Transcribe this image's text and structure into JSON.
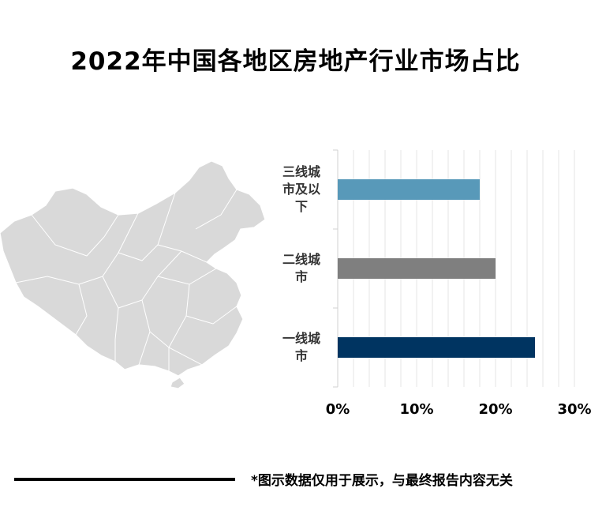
{
  "title": "2022年中国各地区房地产行业市场占比",
  "footnote": "*图示数据仅用于展示，与最终报告内容无关",
  "chart_data": {
    "type": "bar",
    "orientation": "horizontal",
    "categories": [
      "三线城市及以下",
      "二线城市",
      "一线城市"
    ],
    "category_lines": [
      [
        "三线城",
        "市及以",
        "下"
      ],
      [
        "二线城",
        "市"
      ],
      [
        "一线城",
        "市"
      ]
    ],
    "values": [
      18,
      20,
      25
    ],
    "colors": [
      "#5899b9",
      "#7f7f7f",
      "#003461"
    ],
    "xlim": [
      0,
      30
    ],
    "xticks": [
      "0%",
      "10%",
      "20%",
      "30%"
    ],
    "grid": true
  }
}
